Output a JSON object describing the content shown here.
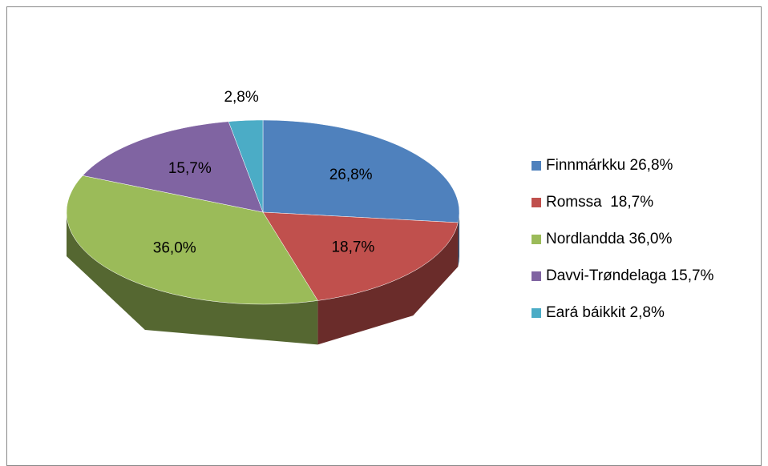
{
  "chart_data": {
    "type": "pie3d",
    "categories": [
      "Finnmárkku 26,8%",
      "Romssa  18,7%",
      "Nordlandda 36,0%",
      "Davvi-Trøndelaga 15,7%",
      "Eará báikkit 2,8%"
    ],
    "values": [
      26.8,
      18.7,
      36.0,
      15.7,
      2.8
    ],
    "value_labels": [
      "26,8%",
      "18,7%",
      "36,0%",
      "15,7%",
      "2,8%"
    ],
    "colors": [
      "#4f81bd",
      "#c0504d",
      "#9bbb59",
      "#8064a2",
      "#4bacc6"
    ],
    "legend": "right"
  }
}
